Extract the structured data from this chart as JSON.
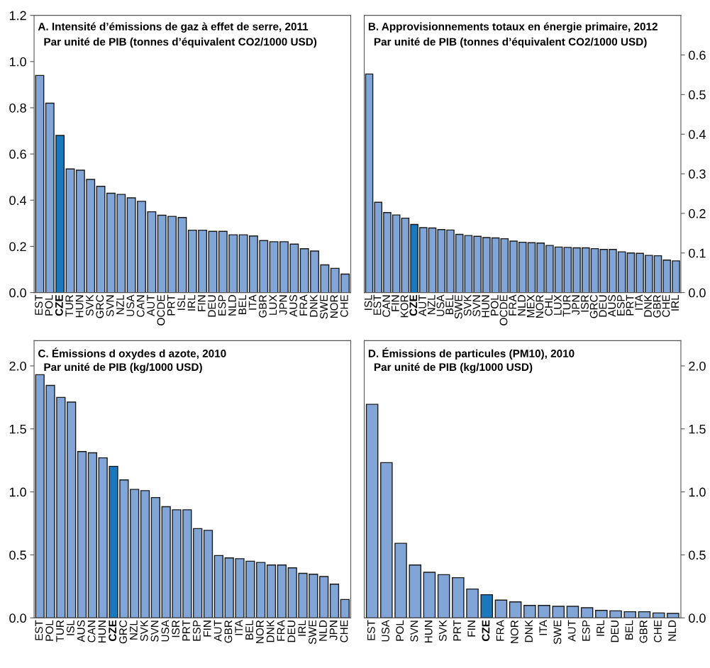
{
  "chart_data": [
    {
      "type": "bar",
      "title": "A. Intensité d’émissions de gaz à effet de serre, 2011",
      "subtitle": "Par unité de PIB (tonnes d’équivalent CO2/1000 USD)",
      "categories": [
        "EST",
        "POL",
        "CZE",
        "TUR",
        "HUN",
        "SVK",
        "GRC",
        "SVN",
        "NZL",
        "USA",
        "CAN",
        "AUT",
        "OCDE",
        "PRT",
        "ISL",
        "IRL",
        "FIN",
        "DEU",
        "ESP",
        "NLD",
        "BEL",
        "ITA",
        "GBR",
        "LUX",
        "JPN",
        "AUS",
        "FRA",
        "DNK",
        "SWE",
        "NOR",
        "CHE"
      ],
      "values": [
        0.94,
        0.82,
        0.68,
        0.535,
        0.53,
        0.49,
        0.46,
        0.43,
        0.425,
        0.41,
        0.395,
        0.35,
        0.335,
        0.33,
        0.325,
        0.27,
        0.27,
        0.265,
        0.265,
        0.25,
        0.25,
        0.245,
        0.225,
        0.22,
        0.22,
        0.21,
        0.19,
        0.18,
        0.12,
        0.105,
        0.08
      ],
      "colors": [
        "#80a5d6",
        "#80a5d6",
        "#1b78bd",
        "#80a5d6",
        "#80a5d6",
        "#80a5d6",
        "#80a5d6",
        "#80a5d6",
        "#80a5d6",
        "#80a5d6",
        "#80a5d6",
        "#80a5d6",
        "#80a5d6",
        "#80a5d6",
        "#80a5d6",
        "#80a5d6",
        "#80a5d6",
        "#80a5d6",
        "#80a5d6",
        "#80a5d6",
        "#80a5d6",
        "#80a5d6",
        "#80a5d6",
        "#80a5d6",
        "#80a5d6",
        "#80a5d6",
        "#80a5d6",
        "#80a5d6",
        "#80a5d6",
        "#80a5d6",
        "#80a5d6"
      ],
      "ylim": [
        0,
        1.2
      ],
      "yticks": [
        {
          "value": 0,
          "label": "0.0"
        },
        {
          "value": 0.2,
          "label": "0.2"
        },
        {
          "value": 0.4,
          "label": "0.4"
        },
        {
          "value": 0.6,
          "label": "0.6"
        },
        {
          "value": 0.8,
          "label": "0.8"
        },
        {
          "value": 1.0,
          "label": "1.0"
        },
        {
          "value": 1.2,
          "label": "1.2"
        }
      ]
    },
    {
      "type": "bar",
      "title": "B. Approvisionnements totaux en énergie primaire, 2012",
      "subtitle": "Par unité de PIB (tonnes d’équivalent CO2/1000 USD)",
      "categories": [
        "ISL",
        "EST",
        "CAN",
        "FIN",
        "KOR",
        "CZE",
        "AUT",
        "NZL",
        "USA",
        "BEL",
        "SWE",
        "SVK",
        "SVN",
        "HUN",
        "POL",
        "OCDE",
        "FRA",
        "NLD",
        "MEX",
        "NOR",
        "CHL",
        "LUX",
        "TUR",
        "JPN",
        "ISR",
        "GRC",
        "DEU",
        "AUS",
        "ESP",
        "PRT",
        "ITA",
        "DNK",
        "GBR",
        "CHE",
        "IRL"
      ],
      "values": [
        0.552,
        0.228,
        0.202,
        0.196,
        0.188,
        0.172,
        0.164,
        0.163,
        0.159,
        0.158,
        0.147,
        0.144,
        0.142,
        0.139,
        0.138,
        0.136,
        0.13,
        0.127,
        0.126,
        0.125,
        0.119,
        0.115,
        0.114,
        0.113,
        0.113,
        0.111,
        0.109,
        0.109,
        0.103,
        0.1,
        0.099,
        0.094,
        0.093,
        0.082,
        0.08
      ],
      "colors": [
        "#80a5d6",
        "#80a5d6",
        "#80a5d6",
        "#80a5d6",
        "#80a5d6",
        "#1b78bd",
        "#80a5d6",
        "#80a5d6",
        "#80a5d6",
        "#80a5d6",
        "#80a5d6",
        "#80a5d6",
        "#80a5d6",
        "#80a5d6",
        "#80a5d6",
        "#80a5d6",
        "#80a5d6",
        "#80a5d6",
        "#80a5d6",
        "#80a5d6",
        "#80a5d6",
        "#80a5d6",
        "#80a5d6",
        "#80a5d6",
        "#80a5d6",
        "#80a5d6",
        "#80a5d6",
        "#80a5d6",
        "#80a5d6",
        "#80a5d6",
        "#80a5d6",
        "#80a5d6",
        "#80a5d6",
        "#80a5d6",
        "#80a5d6"
      ],
      "ylim": [
        0,
        0.7
      ],
      "yticks": [
        {
          "value": 0,
          "label": "0.0"
        },
        {
          "value": 0.1,
          "label": "0.1"
        },
        {
          "value": 0.2,
          "label": "0.2"
        },
        {
          "value": 0.3,
          "label": "0.3"
        },
        {
          "value": 0.4,
          "label": "0.4"
        },
        {
          "value": 0.5,
          "label": "0.5"
        },
        {
          "value": 0.6,
          "label": "0.6"
        }
      ]
    },
    {
      "type": "bar",
      "title": "C. Émissions d oxydes d azote, 2010",
      "subtitle": "Par unité de PIB (kg/1000 USD)",
      "categories": [
        "EST",
        "POL",
        "TUR",
        "ISL",
        "AUS",
        "CAN",
        "HUN",
        "CZE",
        "GRC",
        "NZL",
        "SVK",
        "SVN",
        "USA",
        "ISR",
        "PRT",
        "ESP",
        "FIN",
        "AUT",
        "GBR",
        "ITA",
        "BEL",
        "NOR",
        "DNK",
        "FRA",
        "DEU",
        "IRL",
        "SWE",
        "NLD",
        "JPN",
        "CHE"
      ],
      "values": [
        1.93,
        1.845,
        1.75,
        1.713,
        1.32,
        1.31,
        1.27,
        1.203,
        1.095,
        1.02,
        1.01,
        0.955,
        0.883,
        0.858,
        0.858,
        0.709,
        0.695,
        0.495,
        0.476,
        0.47,
        0.45,
        0.44,
        0.42,
        0.42,
        0.397,
        0.354,
        0.347,
        0.328,
        0.268,
        0.146
      ],
      "colors": [
        "#80a5d6",
        "#80a5d6",
        "#80a5d6",
        "#80a5d6",
        "#80a5d6",
        "#80a5d6",
        "#80a5d6",
        "#1b78bd",
        "#80a5d6",
        "#80a5d6",
        "#80a5d6",
        "#80a5d6",
        "#80a5d6",
        "#80a5d6",
        "#80a5d6",
        "#80a5d6",
        "#80a5d6",
        "#80a5d6",
        "#80a5d6",
        "#80a5d6",
        "#80a5d6",
        "#80a5d6",
        "#80a5d6",
        "#80a5d6",
        "#80a5d6",
        "#80a5d6",
        "#80a5d6",
        "#80a5d6",
        "#80a5d6",
        "#80a5d6"
      ],
      "ylim": [
        0,
        2.2
      ],
      "yticks": [
        {
          "value": 0,
          "label": "0.0"
        },
        {
          "value": 0.5,
          "label": "0.5"
        },
        {
          "value": 1.0,
          "label": "1.0"
        },
        {
          "value": 1.5,
          "label": "1.5"
        },
        {
          "value": 2.0,
          "label": "2.0"
        }
      ]
    },
    {
      "type": "bar",
      "title": "D. Émissions de particules (PM10), 2010",
      "subtitle": "Par unité de PIB (kg/1000 USD)",
      "categories": [
        "EST",
        "USA",
        "POL",
        "SVN",
        "HUN",
        "SVK",
        "PRT",
        "FIN",
        "CZE",
        "FRA",
        "NOR",
        "DNK",
        "ITA",
        "SWE",
        "AUT",
        "ESP",
        "IRL",
        "DEU",
        "BEL",
        "GBR",
        "CHE",
        "NLD"
      ],
      "values": [
        1.695,
        1.232,
        0.592,
        0.42,
        0.362,
        0.343,
        0.319,
        0.229,
        0.184,
        0.141,
        0.127,
        0.099,
        0.099,
        0.092,
        0.092,
        0.081,
        0.06,
        0.056,
        0.049,
        0.049,
        0.039,
        0.036
      ],
      "colors": [
        "#80a5d6",
        "#80a5d6",
        "#80a5d6",
        "#80a5d6",
        "#80a5d6",
        "#80a5d6",
        "#80a5d6",
        "#80a5d6",
        "#1b78bd",
        "#80a5d6",
        "#80a5d6",
        "#80a5d6",
        "#80a5d6",
        "#80a5d6",
        "#80a5d6",
        "#80a5d6",
        "#80a5d6",
        "#80a5d6",
        "#80a5d6",
        "#80a5d6",
        "#80a5d6",
        "#80a5d6"
      ],
      "ylim": [
        0,
        2.2
      ],
      "yticks": [
        {
          "value": 0,
          "label": "0.0"
        },
        {
          "value": 0.5,
          "label": "0.5"
        },
        {
          "value": 1.0,
          "label": "1.0"
        },
        {
          "value": 1.5,
          "label": "1.5"
        },
        {
          "value": 2.0,
          "label": "2.0"
        }
      ]
    }
  ]
}
